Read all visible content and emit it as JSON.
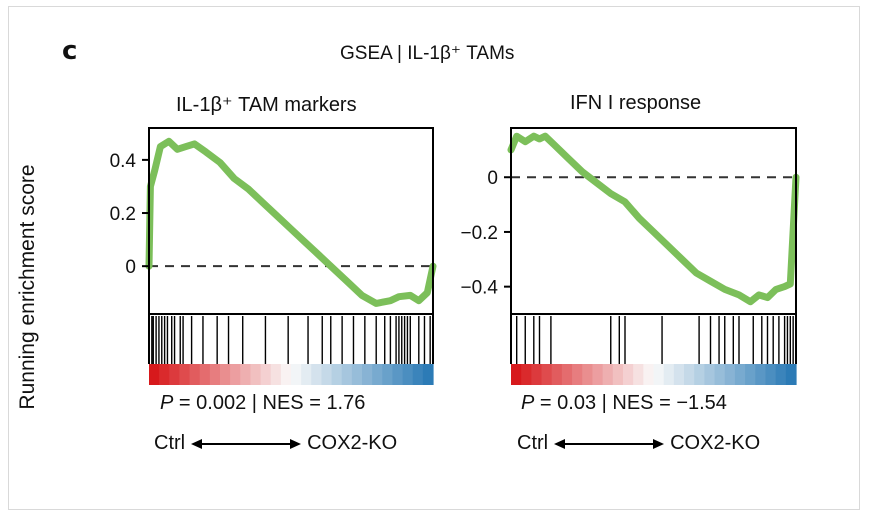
{
  "panel_letter": "c",
  "figure_title": "GSEA | IL-1β⁺ TAMs",
  "ylabel": "Running enrichment score",
  "colors": {
    "curve": "#7cbf5a",
    "pos": "#d7191c",
    "neg": "#2c7bb6"
  },
  "chart_data": [
    {
      "type": "line",
      "title": "IL-1β⁺ TAM markers",
      "ylabel": "Running enrichment score",
      "xlabel": "",
      "ylim": [
        -0.18,
        0.52
      ],
      "yticks": [
        0.4,
        0.2,
        0
      ],
      "ytick_labels": [
        "0.4",
        "0.2",
        "0"
      ],
      "zero_line": true,
      "curve": [
        [
          0,
          0
        ],
        [
          0.005,
          0.3
        ],
        [
          0.02,
          0.36
        ],
        [
          0.04,
          0.45
        ],
        [
          0.07,
          0.47
        ],
        [
          0.1,
          0.44
        ],
        [
          0.13,
          0.45
        ],
        [
          0.16,
          0.46
        ],
        [
          0.2,
          0.43
        ],
        [
          0.25,
          0.39
        ],
        [
          0.3,
          0.33
        ],
        [
          0.35,
          0.29
        ],
        [
          0.4,
          0.24
        ],
        [
          0.45,
          0.19
        ],
        [
          0.5,
          0.14
        ],
        [
          0.55,
          0.09
        ],
        [
          0.6,
          0.04
        ],
        [
          0.65,
          -0.01
        ],
        [
          0.7,
          -0.06
        ],
        [
          0.75,
          -0.11
        ],
        [
          0.8,
          -0.14
        ],
        [
          0.85,
          -0.13
        ],
        [
          0.88,
          -0.115
        ],
        [
          0.92,
          -0.11
        ],
        [
          0.95,
          -0.13
        ],
        [
          0.98,
          -0.1
        ],
        [
          1.0,
          0.0
        ]
      ],
      "hits": [
        0.01,
        0.015,
        0.025,
        0.035,
        0.045,
        0.055,
        0.065,
        0.08,
        0.09,
        0.11,
        0.12,
        0.15,
        0.19,
        0.24,
        0.28,
        0.33,
        0.41,
        0.49,
        0.56,
        0.61,
        0.64,
        0.68,
        0.72,
        0.76,
        0.8,
        0.83,
        0.85,
        0.87,
        0.88,
        0.89,
        0.9,
        0.91,
        0.92,
        0.95,
        0.97,
        0.99
      ],
      "stat_p": "0.002",
      "stat_nes": "1.76",
      "left_label": "Ctrl",
      "right_label": "COX2-KO"
    },
    {
      "type": "line",
      "title": "IFN I response",
      "ylabel": "",
      "xlabel": "",
      "ylim": [
        -0.5,
        0.18
      ],
      "yticks": [
        0,
        -0.2,
        -0.4
      ],
      "ytick_labels": [
        "0",
        "−0.2",
        "−0.4"
      ],
      "zero_line": true,
      "curve": [
        [
          0,
          0.1
        ],
        [
          0.02,
          0.15
        ],
        [
          0.05,
          0.13
        ],
        [
          0.08,
          0.15
        ],
        [
          0.1,
          0.14
        ],
        [
          0.12,
          0.15
        ],
        [
          0.15,
          0.12
        ],
        [
          0.2,
          0.07
        ],
        [
          0.25,
          0.02
        ],
        [
          0.3,
          -0.02
        ],
        [
          0.35,
          -0.06
        ],
        [
          0.4,
          -0.09
        ],
        [
          0.45,
          -0.15
        ],
        [
          0.5,
          -0.2
        ],
        [
          0.55,
          -0.25
        ],
        [
          0.6,
          -0.3
        ],
        [
          0.65,
          -0.35
        ],
        [
          0.7,
          -0.38
        ],
        [
          0.75,
          -0.41
        ],
        [
          0.8,
          -0.43
        ],
        [
          0.84,
          -0.455
        ],
        [
          0.87,
          -0.43
        ],
        [
          0.9,
          -0.44
        ],
        [
          0.93,
          -0.41
        ],
        [
          0.96,
          -0.4
        ],
        [
          0.98,
          -0.39
        ],
        [
          1.0,
          0.0
        ]
      ],
      "hits": [
        0.02,
        0.05,
        0.08,
        0.1,
        0.14,
        0.35,
        0.38,
        0.4,
        0.53,
        0.66,
        0.7,
        0.73,
        0.75,
        0.78,
        0.8,
        0.85,
        0.88,
        0.9,
        0.92,
        0.94,
        0.96,
        0.97,
        0.98,
        0.99
      ],
      "stat_p": "0.03",
      "stat_nes": "−1.54",
      "left_label": "Ctrl",
      "right_label": "COX2-KO"
    }
  ]
}
